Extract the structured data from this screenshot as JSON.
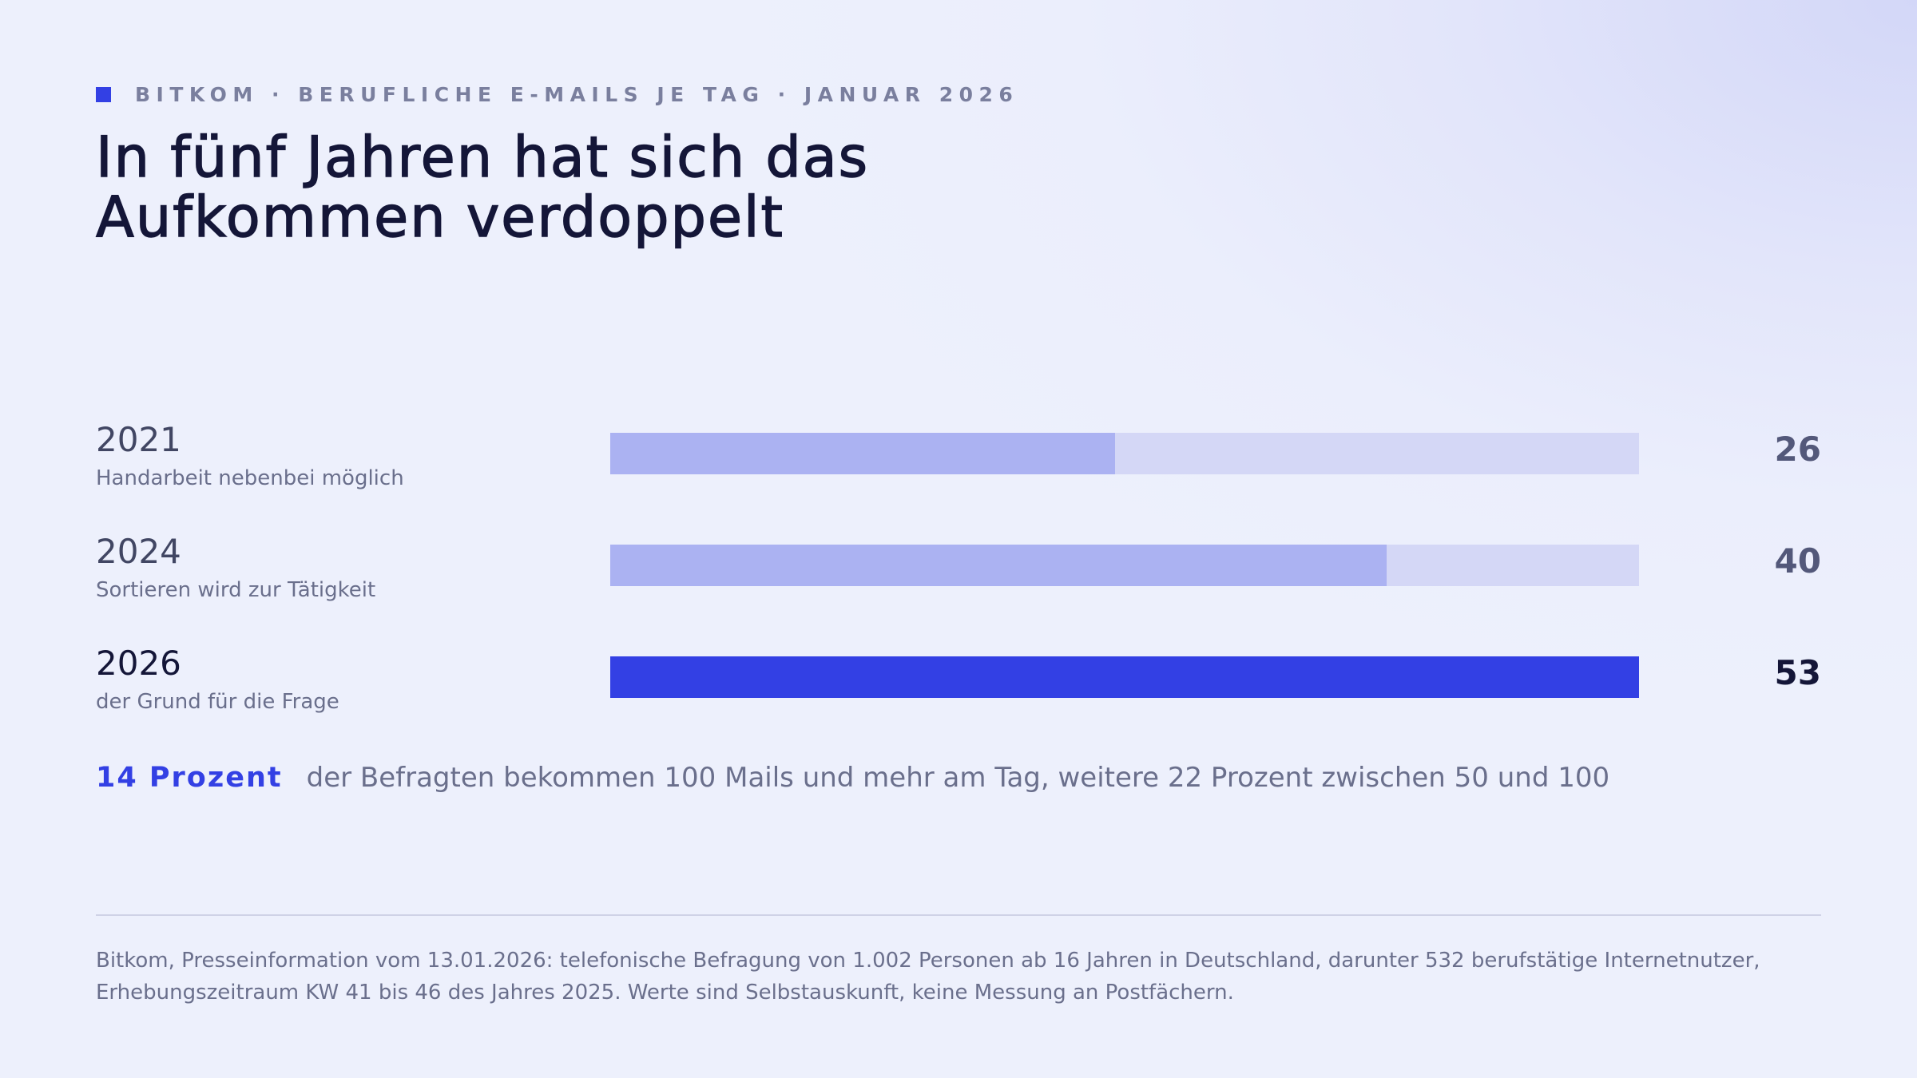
{
  "eyebrow": "BITKOM · BERUFLICHE E-MAILS JE TAG · JANUAR 2026",
  "title_line1": "In fünf Jahren hat sich das",
  "title_line2": "Aufkommen verdoppelt",
  "chart_data": {
    "type": "bar",
    "orientation": "horizontal",
    "title": "In fünf Jahren hat sich das Aufkommen verdoppelt",
    "categories": [
      "2021",
      "2024",
      "2026"
    ],
    "subtitles": [
      "Handarbeit nebenbei möglich",
      "Sortieren wird zur Tätigkeit",
      "der Grund für die Frage"
    ],
    "values": [
      26,
      40,
      53
    ],
    "value_labels": [
      "26",
      "40",
      "53"
    ],
    "xlim": [
      0,
      53
    ],
    "grid": false,
    "colors": {
      "bar": "#abb2f2",
      "bar_highlight": "#3340e4",
      "track": "#d4d7f6"
    }
  },
  "callout": {
    "strong": "14 Prozent",
    "text": "der Befragten bekommen 100 Mails und mehr am Tag, weitere 22 Prozent zwischen 50 und 100"
  },
  "footnote": {
    "line1": "Bitkom, Presseinformation vom 13.01.2026: telefonische Befragung von 1.002 Personen ab 16 Jahren in Deutschland, darunter 532 berufstätige Internetnutzer,",
    "line2": "Erhebungszeitraum KW 41 bis 46 des Jahres 2025. Werte sind Selbstauskunft, keine Messung an Postfächern."
  }
}
